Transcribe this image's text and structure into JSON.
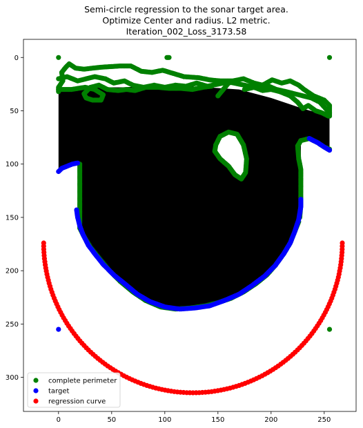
{
  "chart_data": {
    "type": "scatter",
    "title_lines": [
      "Semi-circle regression to the sonar target area.",
      "Optimize Center and radius. L2 metric.",
      "Iteration_002_Loss_3173.58"
    ],
    "xlabel": "",
    "ylabel": "",
    "xlim": [
      -33,
      280
    ],
    "ylim": [
      332,
      -17
    ],
    "y_inverted": true,
    "x_ticks": [
      0,
      50,
      100,
      150,
      200,
      250
    ],
    "y_ticks": [
      0,
      50,
      100,
      150,
      200,
      250,
      300
    ],
    "grid": false,
    "legend_position": "lower-left",
    "filled_region": {
      "color": "#000000",
      "polygon": [
        [
          0,
          32
        ],
        [
          0,
          107
        ],
        [
          3,
          104
        ],
        [
          8,
          102
        ],
        [
          13,
          100
        ],
        [
          18,
          99
        ],
        [
          20,
          100
        ],
        [
          20,
          160
        ],
        [
          23,
          168
        ],
        [
          28,
          176
        ],
        [
          33,
          182
        ],
        [
          40,
          190
        ],
        [
          48,
          200
        ],
        [
          60,
          212
        ],
        [
          72,
          222
        ],
        [
          85,
          230
        ],
        [
          100,
          235
        ],
        [
          115,
          236
        ],
        [
          130,
          235
        ],
        [
          145,
          232
        ],
        [
          160,
          227
        ],
        [
          175,
          220
        ],
        [
          188,
          211
        ],
        [
          200,
          200
        ],
        [
          210,
          188
        ],
        [
          218,
          175
        ],
        [
          223,
          162
        ],
        [
          227,
          150
        ],
        [
          228,
          138
        ],
        [
          228,
          100
        ],
        [
          228,
          78
        ],
        [
          236,
          76
        ],
        [
          248,
          83
        ],
        [
          255,
          88
        ],
        [
          255,
          55
        ],
        [
          230,
          48
        ],
        [
          200,
          38
        ],
        [
          170,
          30
        ],
        [
          140,
          28
        ],
        [
          100,
          26
        ],
        [
          60,
          28
        ],
        [
          20,
          28
        ],
        [
          0,
          32
        ]
      ],
      "hole_polygon": [
        [
          148,
          82
        ],
        [
          152,
          74
        ],
        [
          160,
          70
        ],
        [
          168,
          72
        ],
        [
          174,
          82
        ],
        [
          177,
          95
        ],
        [
          176,
          108
        ],
        [
          172,
          114
        ],
        [
          166,
          110
        ],
        [
          160,
          102
        ],
        [
          152,
          95
        ],
        [
          147,
          88
        ],
        [
          148,
          82
        ]
      ]
    },
    "series": [
      {
        "name": "complete perimeter",
        "color": "#008000",
        "segments": [
          [
            [
              0,
              32
            ],
            [
              0,
              28
            ],
            [
              4,
              22
            ],
            [
              3,
              14
            ],
            [
              7,
              9
            ],
            [
              10,
              6
            ],
            [
              16,
              10
            ],
            [
              24,
              11
            ],
            [
              32,
              10
            ],
            [
              42,
              9
            ],
            [
              58,
              8
            ],
            [
              68,
              8
            ],
            [
              78,
              13
            ],
            [
              88,
              14
            ],
            [
              98,
              12
            ],
            [
              108,
              15
            ],
            [
              118,
              18
            ],
            [
              132,
              19
            ],
            [
              142,
              21
            ],
            [
              152,
              22
            ],
            [
              164,
              22
            ],
            [
              174,
              20
            ],
            [
              184,
              24
            ],
            [
              192,
              26
            ],
            [
              201,
              21
            ],
            [
              210,
              24
            ],
            [
              218,
              22
            ],
            [
              226,
              26
            ],
            [
              231,
              30
            ],
            [
              240,
              36
            ],
            [
              250,
              40
            ],
            [
              255,
              45
            ],
            [
              255,
              55
            ]
          ],
          [
            [
              0,
              20
            ],
            [
              8,
              18
            ],
            [
              18,
              22
            ],
            [
              26,
              20
            ],
            [
              34,
              18
            ],
            [
              44,
              20
            ],
            [
              52,
              24
            ],
            [
              62,
              22
            ],
            [
              70,
              26
            ],
            [
              80,
              28
            ],
            [
              90,
              26
            ],
            [
              100,
              28
            ],
            [
              110,
              26
            ],
            [
              120,
              27
            ],
            [
              130,
              24
            ],
            [
              140,
              27
            ],
            [
              150,
              25
            ],
            [
              160,
              23
            ],
            [
              170,
              25
            ],
            [
              180,
              27
            ],
            [
              190,
              28
            ],
            [
              198,
              27
            ],
            [
              205,
              30
            ],
            [
              214,
              32
            ],
            [
              222,
              34
            ],
            [
              230,
              36
            ],
            [
              238,
              38
            ],
            [
              246,
              42
            ],
            [
              255,
              52
            ]
          ],
          [
            [
              0,
              30
            ],
            [
              12,
              30
            ],
            [
              25,
              28
            ],
            [
              34,
              30
            ],
            [
              42,
              35
            ],
            [
              40,
              40
            ],
            [
              32,
              40
            ],
            [
              26,
              38
            ],
            [
              24,
              34
            ],
            [
              30,
              28
            ],
            [
              38,
              26
            ],
            [
              46,
              30
            ],
            [
              56,
              31
            ],
            [
              64,
              30
            ],
            [
              72,
              31
            ],
            [
              82,
              28
            ],
            [
              94,
              28
            ],
            [
              104,
              29
            ],
            [
              115,
              29
            ],
            [
              126,
              30
            ],
            [
              136,
              28
            ],
            [
              144,
              27
            ]
          ],
          [
            [
              175,
              30
            ],
            [
              184,
              28
            ],
            [
              192,
              31
            ],
            [
              200,
              30
            ],
            [
              208,
              32
            ],
            [
              218,
              36
            ],
            [
              225,
              42
            ],
            [
              230,
              48
            ],
            [
              235,
              45
            ],
            [
              242,
              50
            ],
            [
              248,
              52
            ],
            [
              254,
              55
            ]
          ],
          [
            [
              102,
              0
            ],
            [
              104,
              0
            ]
          ],
          [
            [
              150,
              36
            ],
            [
              160,
              24
            ],
            [
              168,
              22
            ]
          ],
          [
            [
              228,
              78
            ],
            [
              236,
              76
            ],
            [
              244,
              80
            ],
            [
              250,
              84
            ],
            [
              255,
              86
            ]
          ],
          [
            [
              228,
              78
            ],
            [
              225,
              83
            ],
            [
              226,
              95
            ],
            [
              228,
              105
            ],
            [
              228,
              120
            ],
            [
              228,
              138
            ],
            [
              227,
              150
            ]
          ],
          [
            [
              20,
              100
            ],
            [
              20,
              115
            ],
            [
              20,
              130
            ],
            [
              20,
              145
            ],
            [
              20,
              160
            ],
            [
              24,
              168
            ],
            [
              30,
              178
            ],
            [
              38,
              188
            ],
            [
              48,
              200
            ],
            [
              58,
              210
            ],
            [
              70,
              220
            ],
            [
              82,
              228
            ],
            [
              96,
              234
            ],
            [
              110,
              236
            ],
            [
              124,
              235
            ],
            [
              138,
              233
            ],
            [
              150,
              230
            ],
            [
              162,
              226
            ],
            [
              174,
              220
            ],
            [
              186,
              212
            ],
            [
              196,
              204
            ],
            [
              204,
              195
            ],
            [
              212,
              184
            ],
            [
              218,
              174
            ],
            [
              222,
              164
            ],
            [
              226,
              154
            ]
          ],
          [
            [
              148,
              82
            ],
            [
              152,
              74
            ],
            [
              160,
              70
            ],
            [
              168,
              72
            ],
            [
              174,
              82
            ],
            [
              177,
              95
            ],
            [
              176,
              108
            ],
            [
              172,
              114
            ],
            [
              166,
              110
            ],
            [
              160,
              102
            ],
            [
              152,
              95
            ],
            [
              147,
              88
            ],
            [
              148,
              82
            ]
          ],
          [
            [
              0,
              0
            ],
            [
              0,
              0
            ]
          ],
          [
            [
              255,
              0
            ],
            [
              255,
              0
            ]
          ],
          [
            [
              255,
              255
            ],
            [
              255,
              255
            ]
          ]
        ]
      },
      {
        "name": "target",
        "color": "#0000ff",
        "segments": [
          [
            [
              0,
              107
            ],
            [
              3,
              104
            ],
            [
              8,
              102
            ],
            [
              13,
              100
            ],
            [
              18,
              99
            ]
          ],
          [
            [
              17,
              143
            ],
            [
              18,
              150
            ],
            [
              20,
              158
            ],
            [
              23,
              166
            ],
            [
              28,
              176
            ],
            [
              34,
              184
            ],
            [
              42,
              194
            ],
            [
              52,
              204
            ],
            [
              62,
              212
            ],
            [
              74,
              222
            ],
            [
              86,
              229
            ],
            [
              100,
              234
            ],
            [
              114,
              236
            ],
            [
              128,
              235
            ],
            [
              142,
              233
            ],
            [
              156,
              228
            ],
            [
              170,
              222
            ],
            [
              182,
              214
            ],
            [
              194,
              205
            ],
            [
              204,
              195
            ],
            [
              212,
              184
            ],
            [
              218,
              174
            ],
            [
              222,
              164
            ],
            [
              226,
              152
            ],
            [
              228,
              140
            ],
            [
              228,
              133
            ]
          ],
          [
            [
              236,
              76
            ],
            [
              244,
              80
            ],
            [
              250,
              84
            ],
            [
              255,
              87
            ]
          ],
          [
            [
              0,
              255
            ],
            [
              0,
              255
            ]
          ]
        ]
      },
      {
        "name": "regression curve",
        "color": "#ff0000",
        "semicircle": {
          "center": [
            126.5,
            174
          ],
          "radius": 140.5
        }
      }
    ]
  }
}
